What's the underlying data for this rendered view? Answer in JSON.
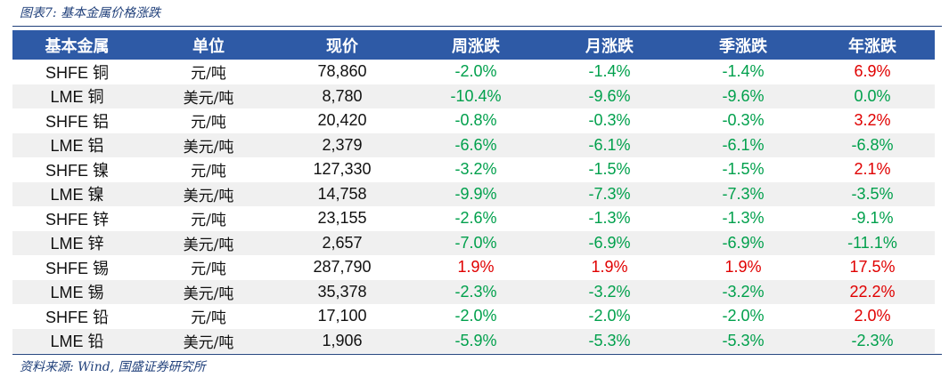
{
  "caption": "图表7:  基本金属价格涨跌",
  "headers": [
    "基本金属",
    "单位",
    "现价",
    "周涨跌",
    "月涨跌",
    "季涨跌",
    "年涨跌"
  ],
  "rows": [
    {
      "metal": "SHFE 铜",
      "unit": "元/吨",
      "price": "78,860",
      "week": "-2.0%",
      "month": "-1.4%",
      "quarter": "-1.4%",
      "year": "6.9%"
    },
    {
      "metal": "LME 铜",
      "unit": "美元/吨",
      "price": "8,780",
      "week": "-10.4%",
      "month": "-9.6%",
      "quarter": "-9.6%",
      "year": "0.0%"
    },
    {
      "metal": "SHFE 铝",
      "unit": "元/吨",
      "price": "20,420",
      "week": "-0.8%",
      "month": "-0.3%",
      "quarter": "-0.3%",
      "year": "3.2%"
    },
    {
      "metal": "LME 铝",
      "unit": "美元/吨",
      "price": "2,379",
      "week": "-6.6%",
      "month": "-6.1%",
      "quarter": "-6.1%",
      "year": "-6.8%"
    },
    {
      "metal": "SHFE 镍",
      "unit": "元/吨",
      "price": "127,330",
      "week": "-3.2%",
      "month": "-1.5%",
      "quarter": "-1.5%",
      "year": "2.1%"
    },
    {
      "metal": "LME 镍",
      "unit": "美元/吨",
      "price": "14,758",
      "week": "-9.9%",
      "month": "-7.3%",
      "quarter": "-7.3%",
      "year": "-3.5%"
    },
    {
      "metal": "SHFE 锌",
      "unit": "元/吨",
      "price": "23,155",
      "week": "-2.6%",
      "month": "-1.3%",
      "quarter": "-1.3%",
      "year": "-9.1%"
    },
    {
      "metal": "LME 锌",
      "unit": "美元/吨",
      "price": "2,657",
      "week": "-7.0%",
      "month": "-6.9%",
      "quarter": "-6.9%",
      "year": "-11.1%"
    },
    {
      "metal": "SHFE 锡",
      "unit": "元/吨",
      "price": "287,790",
      "week": "1.9%",
      "month": "1.9%",
      "quarter": "1.9%",
      "year": "17.5%"
    },
    {
      "metal": "LME 锡",
      "unit": "美元/吨",
      "price": "35,378",
      "week": "-2.3%",
      "month": "-3.2%",
      "quarter": "-3.2%",
      "year": "22.2%"
    },
    {
      "metal": "SHFE 铅",
      "unit": "元/吨",
      "price": "17,100",
      "week": "-2.0%",
      "month": "-2.0%",
      "quarter": "-2.0%",
      "year": "2.0%"
    },
    {
      "metal": "LME 铅",
      "unit": "美元/吨",
      "price": "1,906",
      "week": "-5.9%",
      "month": "-5.3%",
      "quarter": "-5.3%",
      "year": "-2.3%"
    }
  ],
  "colors": {
    "up": "#e00000",
    "down": "#00a04c",
    "header_bg": "#2e5aa6"
  },
  "source": "资料来源:  Wind,  国盛证券研究所"
}
